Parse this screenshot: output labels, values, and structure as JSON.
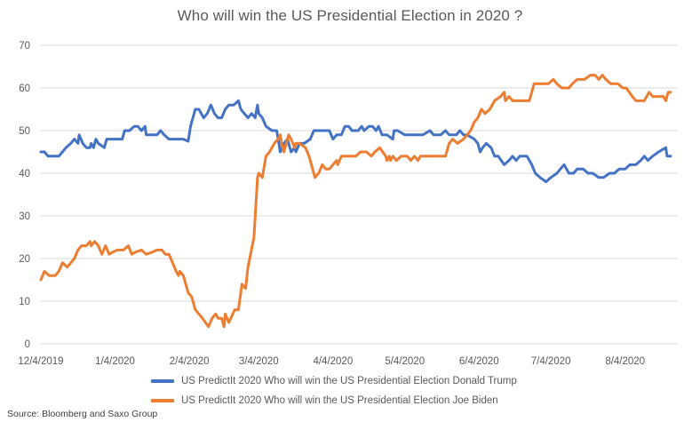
{
  "chart_data": {
    "type": "line",
    "title": "Who will win the US Presidential Election in 2020 ?",
    "xlabel": "",
    "ylabel": "",
    "ylim": [
      0,
      70
    ],
    "yticks": [
      0,
      10,
      20,
      30,
      40,
      50,
      60,
      70
    ],
    "x_unit": "days since 12/4/2019",
    "xlim": [
      0,
      266
    ],
    "xticks": [
      {
        "day": 0,
        "label": "12/4/2019"
      },
      {
        "day": 31,
        "label": "1/4/2020"
      },
      {
        "day": 62,
        "label": "2/4/2020"
      },
      {
        "day": 91,
        "label": "3/4/2020"
      },
      {
        "day": 122,
        "label": "4/4/2020"
      },
      {
        "day": 152,
        "label": "5/4/2020"
      },
      {
        "day": 183,
        "label": "6/4/2020"
      },
      {
        "day": 213,
        "label": "7/4/2020"
      },
      {
        "day": 244,
        "label": "8/4/2020"
      }
    ],
    "grid": true,
    "legend_position": "bottom",
    "series": [
      {
        "name": "US PredictIt 2020 Who will win the US Presidential Election Donald Trump",
        "color": "#4472C4",
        "points": [
          [
            0,
            45
          ],
          [
            1.5,
            45
          ],
          [
            3,
            44
          ],
          [
            6,
            44
          ],
          [
            7.5,
            44
          ],
          [
            9,
            45
          ],
          [
            10.5,
            46
          ],
          [
            12.5,
            47
          ],
          [
            14,
            48
          ],
          [
            15.5,
            47
          ],
          [
            16,
            49
          ],
          [
            17.5,
            47
          ],
          [
            19,
            46
          ],
          [
            20.5,
            46
          ],
          [
            21,
            47
          ],
          [
            22,
            46
          ],
          [
            23,
            48
          ],
          [
            24,
            47
          ],
          [
            26.5,
            46
          ],
          [
            27.5,
            48
          ],
          [
            29,
            48
          ],
          [
            31,
            48
          ],
          [
            34,
            48
          ],
          [
            35,
            50
          ],
          [
            37,
            50
          ],
          [
            39,
            51
          ],
          [
            40.5,
            51
          ],
          [
            42,
            50
          ],
          [
            43.5,
            51
          ],
          [
            44,
            49
          ],
          [
            46.5,
            49
          ],
          [
            48.5,
            49
          ],
          [
            50,
            50
          ],
          [
            51.5,
            49
          ],
          [
            53.5,
            48
          ],
          [
            56.5,
            48
          ],
          [
            59.5,
            48
          ],
          [
            61.5,
            47.5
          ],
          [
            62.5,
            51
          ],
          [
            63,
            52
          ],
          [
            64.5,
            55
          ],
          [
            66,
            55
          ],
          [
            68,
            53
          ],
          [
            69.5,
            54
          ],
          [
            71,
            56
          ],
          [
            72.5,
            54
          ],
          [
            74,
            53
          ],
          [
            75.5,
            53
          ],
          [
            77,
            55
          ],
          [
            78.5,
            56
          ],
          [
            80.5,
            56
          ],
          [
            82.5,
            57
          ],
          [
            83.5,
            55
          ],
          [
            85,
            54
          ],
          [
            86.5,
            53
          ],
          [
            88,
            54
          ],
          [
            89.5,
            53
          ],
          [
            90.5,
            56
          ],
          [
            91,
            54
          ],
          [
            92.5,
            53
          ],
          [
            94,
            51
          ],
          [
            96.5,
            50
          ],
          [
            98.5,
            50
          ],
          [
            100,
            45
          ],
          [
            101.5,
            47
          ],
          [
            103,
            48
          ],
          [
            104.5,
            45
          ],
          [
            106,
            46
          ],
          [
            106.5,
            45
          ],
          [
            108,
            47
          ],
          [
            110,
            47
          ],
          [
            112.5,
            48
          ],
          [
            114,
            50
          ],
          [
            115.5,
            50
          ],
          [
            117.5,
            50
          ],
          [
            119,
            50
          ],
          [
            120.5,
            50
          ],
          [
            122,
            48
          ],
          [
            123.5,
            49
          ],
          [
            125.5,
            49
          ],
          [
            127,
            51
          ],
          [
            128.5,
            51
          ],
          [
            130,
            50
          ],
          [
            132.5,
            50
          ],
          [
            134,
            51
          ],
          [
            135,
            50
          ],
          [
            137,
            51
          ],
          [
            138.5,
            51
          ],
          [
            140,
            50
          ],
          [
            141,
            51
          ],
          [
            142.5,
            49
          ],
          [
            144.5,
            49
          ],
          [
            147,
            48
          ],
          [
            147.5,
            50
          ],
          [
            149,
            50
          ],
          [
            152,
            49
          ],
          [
            156,
            49
          ],
          [
            159.5,
            49
          ],
          [
            162.5,
            50
          ],
          [
            164,
            49
          ],
          [
            167,
            49
          ],
          [
            169,
            50
          ],
          [
            170.5,
            49
          ],
          [
            173.5,
            49
          ],
          [
            175,
            50
          ],
          [
            176.5,
            49
          ],
          [
            178,
            49
          ],
          [
            181,
            48
          ],
          [
            182.5,
            47
          ],
          [
            183.5,
            45
          ],
          [
            184.5,
            46
          ],
          [
            186,
            47
          ],
          [
            188,
            46
          ],
          [
            189.5,
            44
          ],
          [
            191,
            44
          ],
          [
            193.5,
            42
          ],
          [
            195.5,
            43
          ],
          [
            197,
            44
          ],
          [
            198.5,
            43
          ],
          [
            200,
            44
          ],
          [
            203,
            44
          ],
          [
            205,
            42
          ],
          [
            206.5,
            40
          ],
          [
            208.5,
            39
          ],
          [
            211,
            38
          ],
          [
            213,
            39
          ],
          [
            215.5,
            40
          ],
          [
            217,
            41
          ],
          [
            218.5,
            42
          ],
          [
            220.5,
            40
          ],
          [
            222.5,
            40
          ],
          [
            224,
            41
          ],
          [
            226.5,
            41
          ],
          [
            228.5,
            40
          ],
          [
            230.5,
            40
          ],
          [
            233,
            39
          ],
          [
            235,
            39
          ],
          [
            237.5,
            40
          ],
          [
            239.5,
            40
          ],
          [
            241.5,
            41
          ],
          [
            244,
            41
          ],
          [
            246,
            42
          ],
          [
            248.5,
            42
          ],
          [
            250.5,
            43
          ],
          [
            252,
            44
          ],
          [
            253.5,
            43
          ],
          [
            255.5,
            44
          ],
          [
            258,
            45
          ],
          [
            261,
            46
          ],
          [
            261.5,
            44
          ],
          [
            263,
            44
          ]
        ]
      },
      {
        "name": "US PredictIt 2020 Who will win the US Presidential Election Joe Biden",
        "color": "#ED7D31",
        "points": [
          [
            0,
            15
          ],
          [
            1.5,
            17
          ],
          [
            3.5,
            16
          ],
          [
            6,
            16
          ],
          [
            7.5,
            17
          ],
          [
            9,
            19
          ],
          [
            11,
            18
          ],
          [
            12.5,
            19
          ],
          [
            14,
            20
          ],
          [
            15.5,
            22
          ],
          [
            17,
            23
          ],
          [
            19,
            23
          ],
          [
            20.5,
            24
          ],
          [
            21,
            23
          ],
          [
            22.5,
            24
          ],
          [
            24,
            23
          ],
          [
            25.5,
            21
          ],
          [
            27,
            23
          ],
          [
            28.5,
            21
          ],
          [
            30,
            21.5
          ],
          [
            32,
            22
          ],
          [
            34.5,
            22
          ],
          [
            36.5,
            23
          ],
          [
            38,
            21
          ],
          [
            39.5,
            21.5
          ],
          [
            42,
            22
          ],
          [
            44,
            21
          ],
          [
            46.5,
            21.5
          ],
          [
            48.5,
            22
          ],
          [
            50.5,
            22
          ],
          [
            52,
            21
          ],
          [
            53.5,
            21
          ],
          [
            55,
            19
          ],
          [
            56.5,
            17
          ],
          [
            57.5,
            16
          ],
          [
            58,
            17
          ],
          [
            59.5,
            16
          ],
          [
            61.5,
            12
          ],
          [
            63,
            11
          ],
          [
            64.5,
            8
          ],
          [
            66,
            7
          ],
          [
            67.5,
            6
          ],
          [
            70,
            4
          ],
          [
            71.5,
            6
          ],
          [
            73,
            7
          ],
          [
            74,
            6
          ],
          [
            75.5,
            6
          ],
          [
            76.5,
            4
          ],
          [
            77,
            7
          ],
          [
            78.5,
            5
          ],
          [
            81,
            8
          ],
          [
            82.5,
            8
          ],
          [
            84,
            14
          ],
          [
            85.5,
            13
          ],
          [
            86.5,
            18
          ],
          [
            89,
            25
          ],
          [
            90.5,
            39
          ],
          [
            91,
            40
          ],
          [
            92.5,
            39
          ],
          [
            94,
            44
          ],
          [
            95.5,
            45
          ],
          [
            97.5,
            47
          ],
          [
            99,
            48
          ],
          [
            100,
            49
          ],
          [
            100.5,
            47
          ],
          [
            101.5,
            45
          ],
          [
            102,
            46
          ],
          [
            103.5,
            49
          ],
          [
            104.5,
            48
          ],
          [
            106,
            46
          ],
          [
            106.5,
            47
          ],
          [
            108,
            47
          ],
          [
            110.5,
            46
          ],
          [
            112,
            44
          ],
          [
            113.5,
            41
          ],
          [
            114.5,
            39
          ],
          [
            116,
            40
          ],
          [
            117.5,
            42
          ],
          [
            119,
            41
          ],
          [
            120.5,
            41
          ],
          [
            122,
            42
          ],
          [
            123.5,
            43
          ],
          [
            124,
            42
          ],
          [
            125.5,
            44
          ],
          [
            128.5,
            44
          ],
          [
            131.5,
            44
          ],
          [
            133.5,
            45
          ],
          [
            136,
            45
          ],
          [
            138,
            44
          ],
          [
            139.5,
            45
          ],
          [
            141.5,
            46
          ],
          [
            144,
            44
          ],
          [
            144.5,
            43
          ],
          [
            145.5,
            44
          ],
          [
            146,
            43
          ],
          [
            147,
            44
          ],
          [
            148.5,
            43
          ],
          [
            150.5,
            44
          ],
          [
            153,
            44
          ],
          [
            154.5,
            43
          ],
          [
            156,
            44
          ],
          [
            157.5,
            43
          ],
          [
            158.5,
            44
          ],
          [
            161,
            44
          ],
          [
            163,
            44
          ],
          [
            167,
            44
          ],
          [
            169,
            44
          ],
          [
            170.5,
            47
          ],
          [
            172,
            48
          ],
          [
            174,
            47
          ],
          [
            176.5,
            48
          ],
          [
            178,
            49
          ],
          [
            179.5,
            50
          ],
          [
            181,
            52
          ],
          [
            182.5,
            53
          ],
          [
            184,
            55
          ],
          [
            185.5,
            54
          ],
          [
            187.5,
            55
          ],
          [
            189.5,
            57
          ],
          [
            192,
            58
          ],
          [
            193.5,
            59
          ],
          [
            194,
            57
          ],
          [
            195.5,
            58
          ],
          [
            197,
            57
          ],
          [
            199.5,
            57
          ],
          [
            204,
            57
          ],
          [
            206,
            61
          ],
          [
            209,
            61
          ],
          [
            212,
            61
          ],
          [
            214,
            62
          ],
          [
            215.5,
            61
          ],
          [
            217.5,
            60
          ],
          [
            220.5,
            60
          ],
          [
            222,
            61
          ],
          [
            224,
            62
          ],
          [
            227,
            62
          ],
          [
            229.5,
            63
          ],
          [
            231.5,
            63
          ],
          [
            233,
            62
          ],
          [
            234.5,
            63
          ],
          [
            236,
            62
          ],
          [
            238,
            61
          ],
          [
            241,
            61
          ],
          [
            243,
            60
          ],
          [
            244.5,
            60
          ],
          [
            247,
            58
          ],
          [
            248.5,
            57
          ],
          [
            252,
            57
          ],
          [
            254,
            59
          ],
          [
            255.5,
            58
          ],
          [
            260,
            58
          ],
          [
            261,
            57
          ],
          [
            262,
            59
          ],
          [
            263,
            59
          ]
        ]
      }
    ]
  },
  "legend": {
    "items": [
      {
        "label": "US PredictIt 2020 Who will win the US Presidential Election Donald Trump",
        "color": "#4472C4"
      },
      {
        "label": "US PredictIt 2020 Who will win the US Presidential Election Joe Biden",
        "color": "#ED7D31"
      }
    ]
  },
  "footer": {
    "source": "Source: Bloomberg and Saxo Group"
  }
}
